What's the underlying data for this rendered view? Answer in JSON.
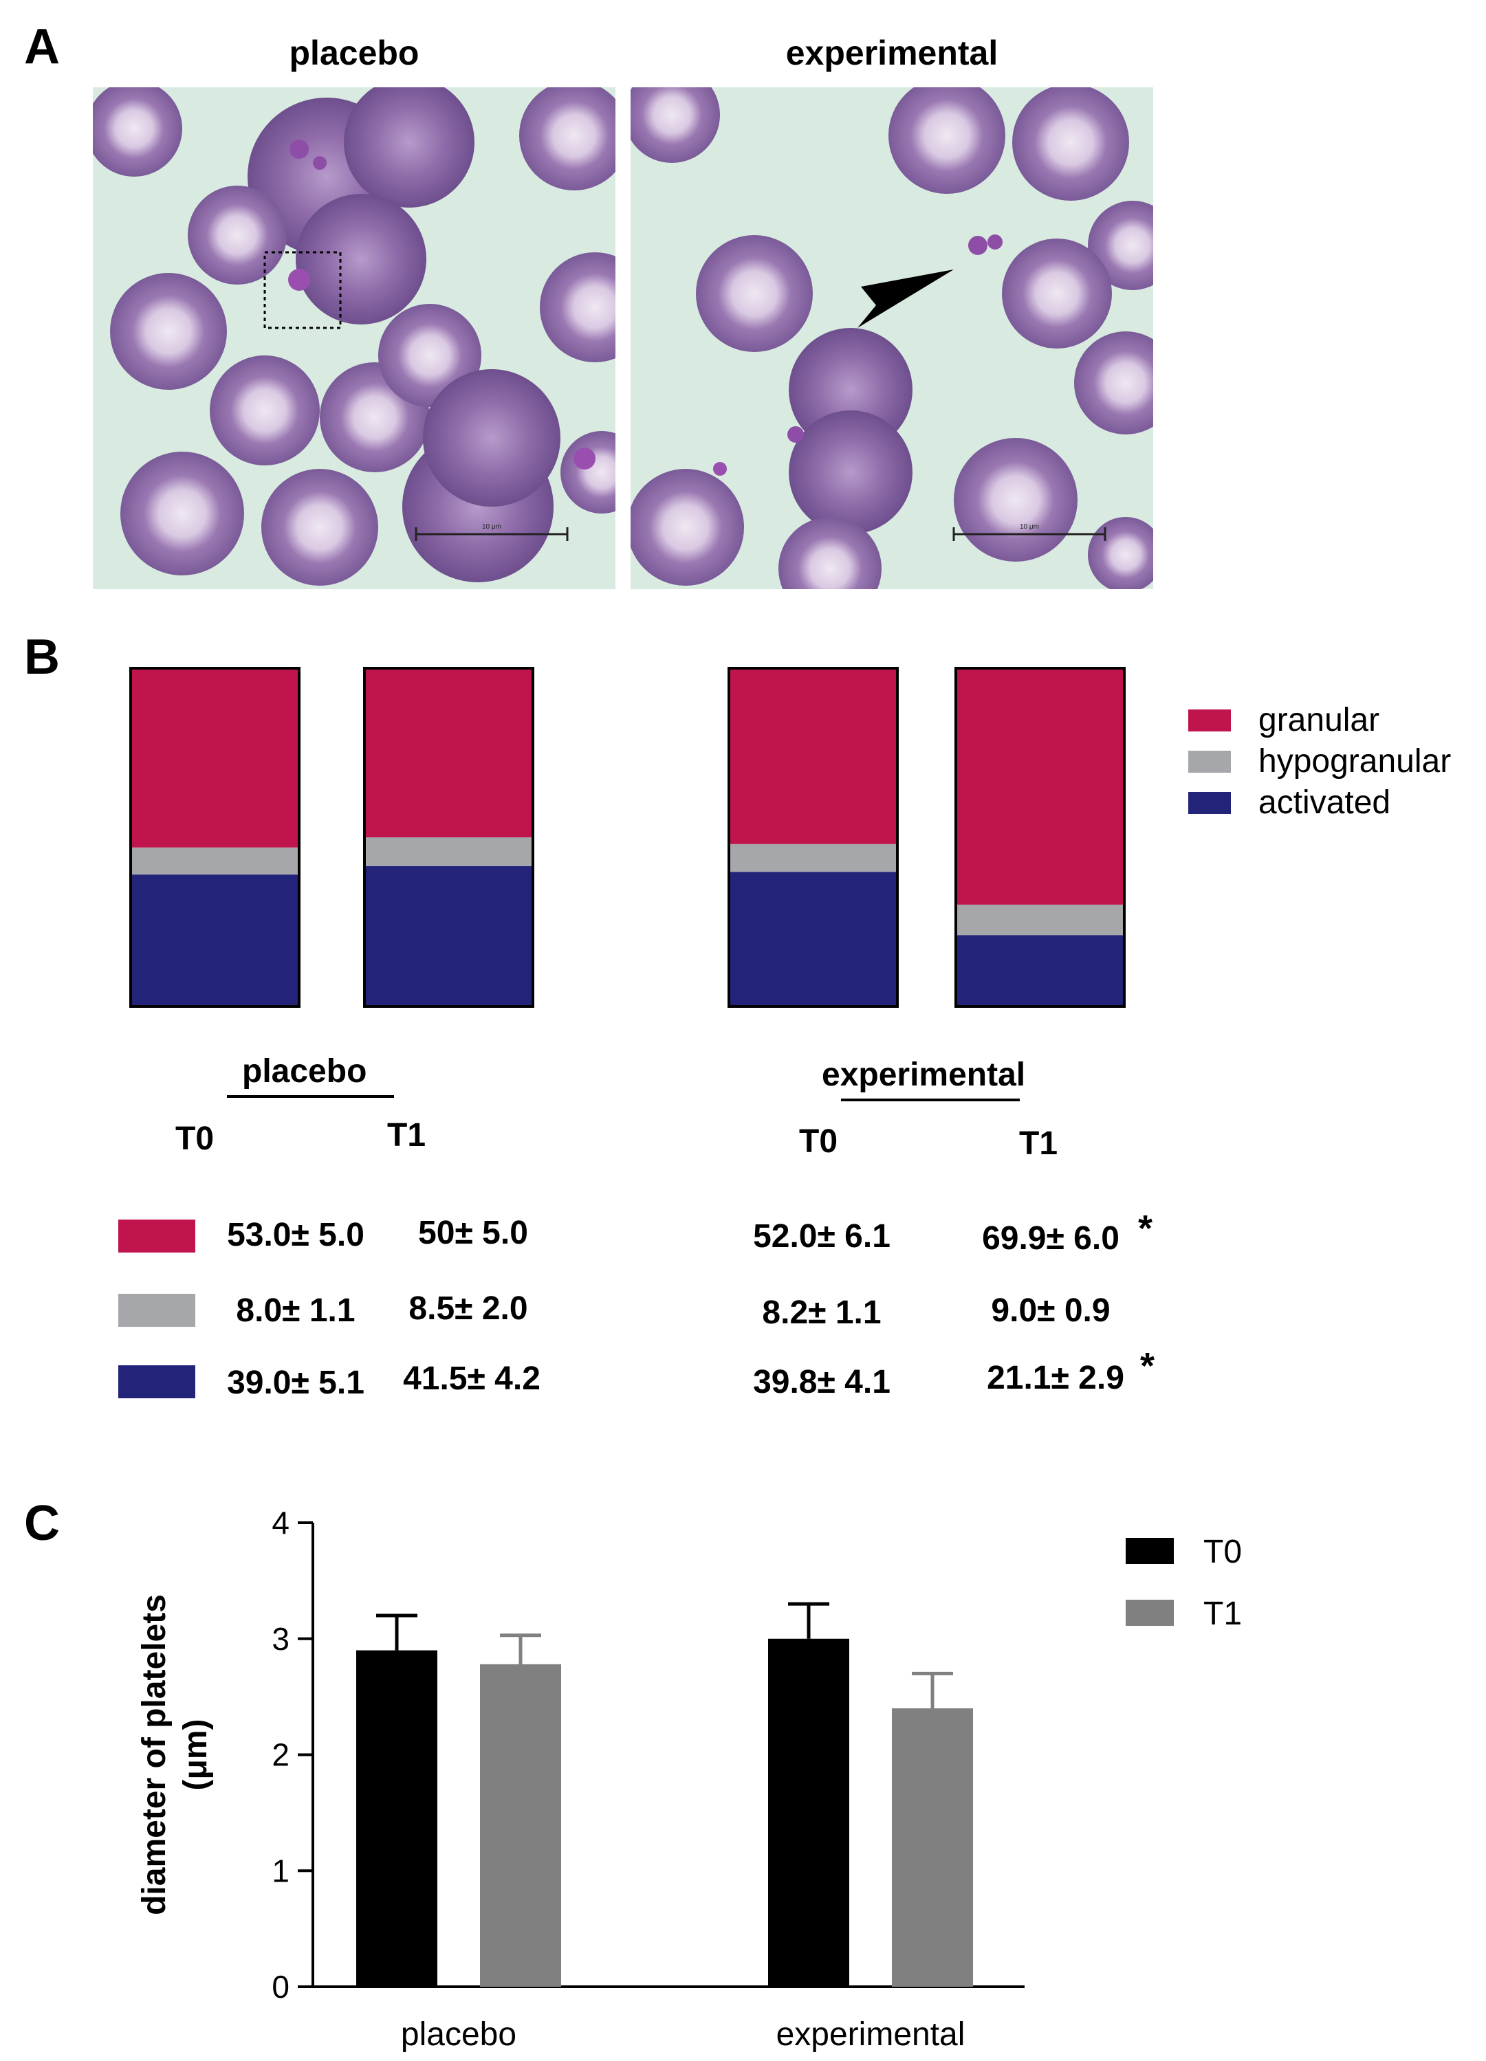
{
  "panel_a": {
    "letter": "A",
    "images": [
      {
        "title": "placebo",
        "scale_label": "10 μm"
      },
      {
        "title": "experimental",
        "scale_label": "10 μm"
      }
    ]
  },
  "panel_b": {
    "letter": "B",
    "legend": [
      "granular",
      "hypogranular",
      "activated"
    ],
    "colors": {
      "granular": "#c0154c",
      "hypogranular": "#a6a7ab",
      "activated": "#23237a"
    },
    "groups": [
      {
        "label": "placebo",
        "time_labels": [
          "T0",
          "T1"
        ]
      },
      {
        "label": "experimental",
        "time_labels": [
          "T0",
          "T1"
        ]
      }
    ],
    "table": {
      "rows": [
        {
          "category": "granular",
          "placebo_t0": "53.0± 5.0",
          "placebo_t1": "50± 5.0",
          "experimental_t0": "52.0± 6.1",
          "experimental_t1": "69.9± 6.0",
          "mark": "*"
        },
        {
          "category": "hypogranular",
          "placebo_t0": "8.0± 1.1",
          "placebo_t1": "8.5± 2.0",
          "experimental_t0": "8.2± 1.1",
          "experimental_t1": "9.0± 0.9",
          "mark": ""
        },
        {
          "category": "activated",
          "placebo_t0": "39.0± 5.1",
          "placebo_t1": "41.5± 4.2",
          "experimental_t0": "39.8± 4.1",
          "experimental_t1": "21.1± 2.9",
          "mark": "*"
        }
      ]
    }
  },
  "panel_c": {
    "letter": "C",
    "colors": {
      "T0": "#000000",
      "T1": "#808080"
    }
  },
  "chart_data": [
    {
      "type": "bar",
      "stacked": true,
      "percent": true,
      "categories": [
        "placebo T0",
        "placebo T1",
        "experimental T0",
        "experimental T1"
      ],
      "series": [
        {
          "name": "granular",
          "values": [
            53.0,
            50.0,
            52.0,
            69.9
          ]
        },
        {
          "name": "hypogranular",
          "values": [
            8.0,
            8.5,
            8.2,
            9.0
          ]
        },
        {
          "name": "activated",
          "values": [
            39.0,
            41.5,
            39.8,
            21.1
          ]
        }
      ],
      "legend_position": "right"
    },
    {
      "type": "bar",
      "categories": [
        "placebo",
        "experimental"
      ],
      "series": [
        {
          "name": "T0",
          "values": [
            2.9,
            3.0
          ],
          "errors": [
            0.3,
            0.3
          ]
        },
        {
          "name": "T1",
          "values": [
            2.78,
            2.4
          ],
          "errors": [
            0.25,
            0.3
          ]
        }
      ],
      "ylabel": "diameter of platelets (μm)",
      "ylim": [
        0,
        4
      ],
      "yticks": [
        0,
        1,
        2,
        3,
        4
      ],
      "legend_position": "top-right"
    }
  ]
}
